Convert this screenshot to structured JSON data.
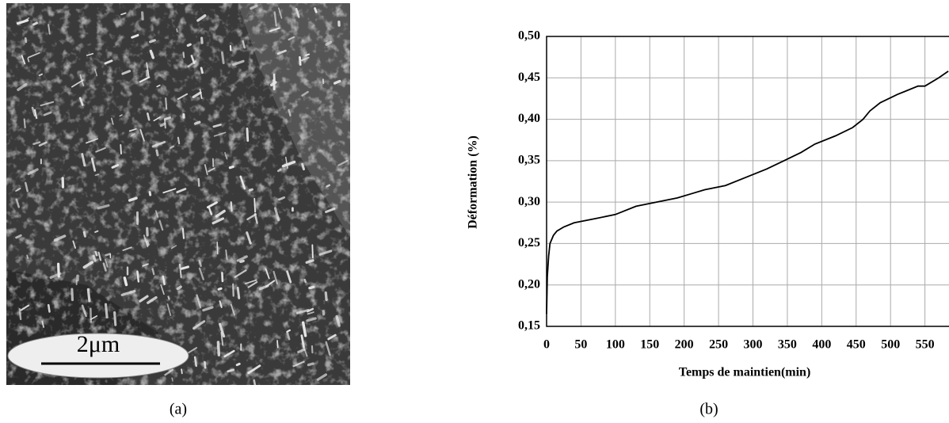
{
  "figure": {
    "scale_bar": "2μm",
    "caption_a": "(a)",
    "caption_b": "(b)"
  },
  "chart_data": {
    "type": "line",
    "xlabel": "Temps de maintien(min)",
    "ylabel": "Déformation (%)",
    "x": [
      0,
      1,
      3,
      5,
      10,
      15,
      25,
      40,
      70,
      100,
      130,
      160,
      190,
      210,
      230,
      260,
      290,
      320,
      345,
      370,
      390,
      420,
      445,
      460,
      470,
      485,
      510,
      540,
      550,
      570,
      584
    ],
    "series": [
      {
        "name": "Déformation",
        "color": "#000000",
        "values": [
          0.165,
          0.21,
          0.235,
          0.25,
          0.26,
          0.265,
          0.27,
          0.275,
          0.28,
          0.285,
          0.295,
          0.3,
          0.305,
          0.31,
          0.315,
          0.32,
          0.33,
          0.34,
          0.35,
          0.36,
          0.37,
          0.38,
          0.39,
          0.4,
          0.41,
          0.42,
          0.43,
          0.44,
          0.44,
          0.45,
          0.458
        ]
      }
    ],
    "xlim": [
      0,
      585
    ],
    "ylim": [
      0.15,
      0.5
    ],
    "xticks": [
      0,
      50,
      100,
      150,
      200,
      250,
      300,
      350,
      400,
      450,
      500,
      550
    ],
    "yticks": [
      {
        "value": 0.15,
        "label": "0,15"
      },
      {
        "value": 0.2,
        "label": "0,20"
      },
      {
        "value": 0.25,
        "label": "0,25"
      },
      {
        "value": 0.3,
        "label": "0,30"
      },
      {
        "value": 0.35,
        "label": "0,35"
      },
      {
        "value": 0.4,
        "label": "0,40"
      },
      {
        "value": 0.45,
        "label": "0,45"
      },
      {
        "value": 0.5,
        "label": "0,50"
      }
    ],
    "grid": true
  }
}
